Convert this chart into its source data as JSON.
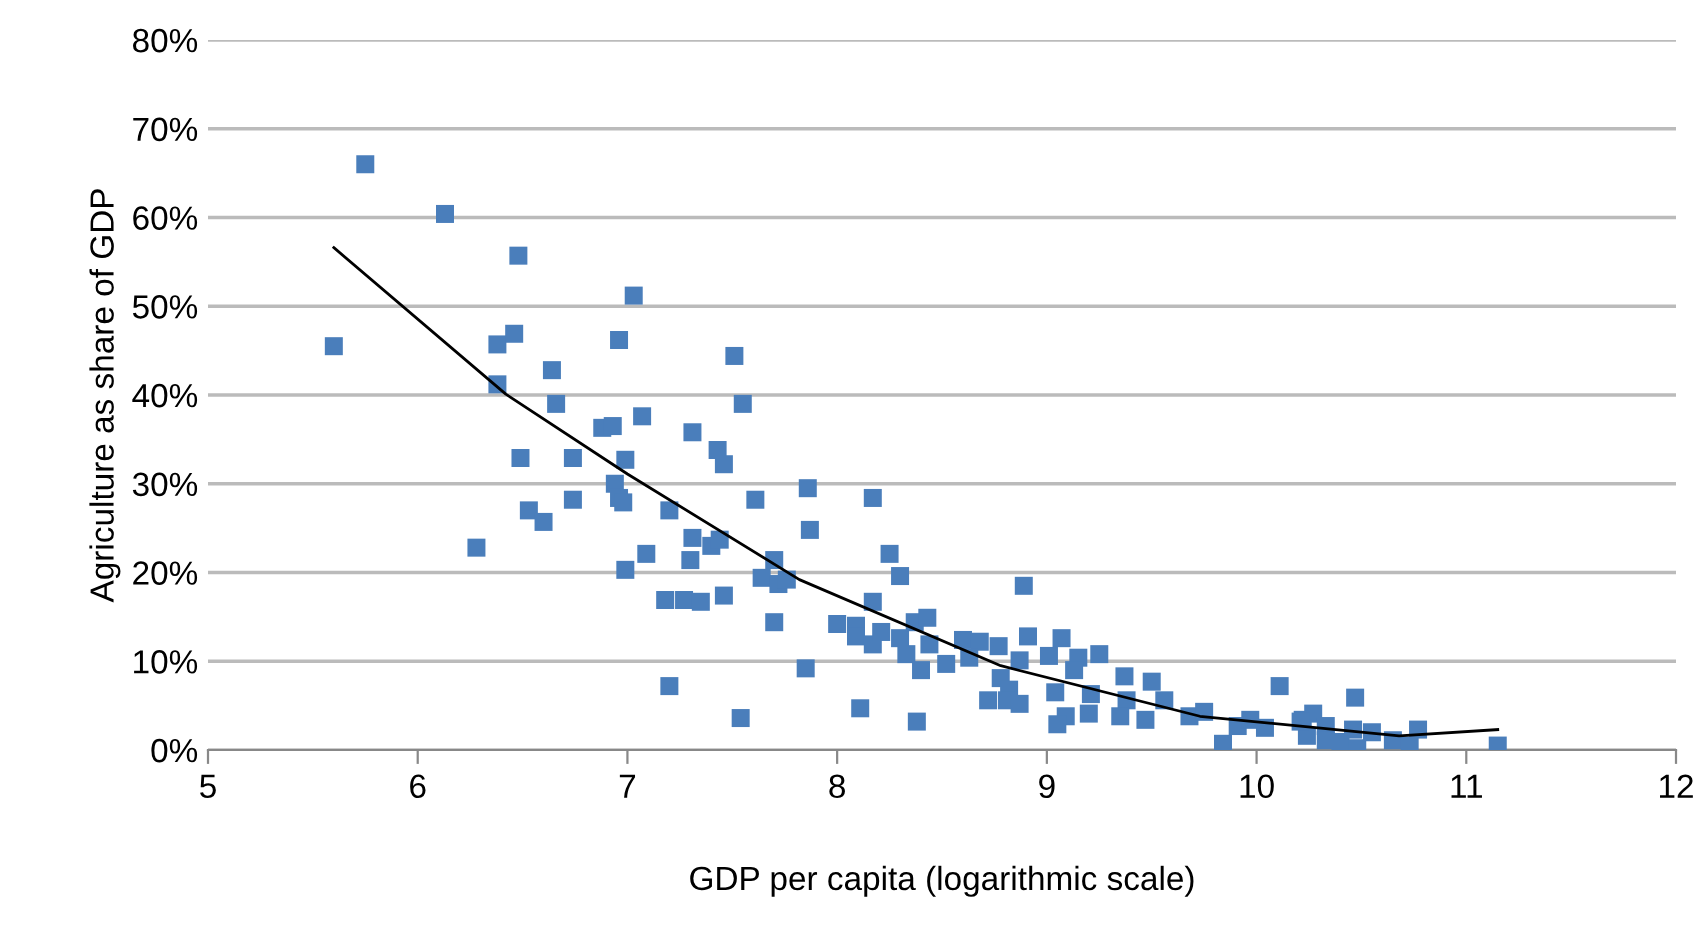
{
  "chart_data": {
    "type": "scatter",
    "xlabel": "GDP per capita (logarithmic scale)",
    "ylabel": "Agriculture as share of GDP",
    "marker": "square",
    "grid": "y",
    "legend": false,
    "xlim": [
      5,
      12
    ],
    "xticks": [
      5,
      6,
      7,
      8,
      9,
      10,
      11,
      12
    ],
    "ylim": [
      0,
      80
    ],
    "yticks": [
      {
        "value": 0,
        "label": "0%"
      },
      {
        "value": 10,
        "label": "10%"
      },
      {
        "value": 20,
        "label": "20%"
      },
      {
        "value": 30,
        "label": "30%"
      },
      {
        "value": 40,
        "label": "40%"
      },
      {
        "value": 50,
        "label": "50%"
      },
      {
        "value": 60,
        "label": "60%"
      },
      {
        "value": 70,
        "label": "70%"
      },
      {
        "value": 80,
        "label": "80%"
      }
    ],
    "series": [
      {
        "color": "#4a7ebb",
        "x": [
          5.75,
          6.13,
          6.48,
          7.03,
          5.6,
          6.38,
          6.46,
          6.96,
          6.64,
          7.51,
          6.38,
          6.66,
          7.55,
          6.88,
          6.93,
          7.07,
          7.31,
          7.43,
          7.46,
          6.49,
          6.74,
          6.99,
          6.94,
          6.96,
          6.98,
          6.74,
          7.2,
          7.61,
          7.86,
          7.87,
          6.53,
          6.6,
          6.28,
          7.09,
          6.99,
          7.31,
          7.4,
          7.44,
          7.3,
          7.7,
          7.64,
          7.72,
          7.76,
          7.18,
          7.27,
          7.35,
          7.46,
          7.7,
          7.85,
          7.2,
          7.54,
          8.17,
          8.25,
          8.3,
          8.17,
          8.0,
          8.09,
          8.09,
          8.17,
          8.21,
          8.3,
          8.33,
          8.37,
          8.43,
          8.44,
          8.4,
          8.52,
          8.6,
          8.68,
          8.63,
          8.77,
          8.78,
          8.82,
          8.87,
          8.72,
          8.81,
          8.87,
          8.89,
          8.91,
          9.07,
          9.01,
          9.15,
          9.25,
          9.13,
          9.04,
          9.21,
          9.37,
          9.5,
          9.56,
          9.38,
          9.47,
          9.35,
          9.09,
          9.05,
          9.2,
          8.11,
          8.38,
          9.68,
          9.75,
          9.84,
          9.91,
          9.97,
          10.04,
          10.11,
          10.22,
          10.27,
          10.24,
          10.47,
          10.21,
          10.33,
          10.33,
          10.4,
          10.46,
          10.48,
          10.55,
          10.65,
          10.73,
          10.77,
          11.15
        ],
        "values": [
          66.0,
          60.4,
          55.7,
          51.2,
          45.5,
          45.7,
          46.9,
          46.2,
          42.8,
          44.4,
          41.2,
          39.0,
          39.0,
          36.3,
          36.5,
          37.6,
          35.8,
          33.8,
          32.2,
          32.9,
          32.9,
          32.7,
          30.0,
          28.4,
          27.9,
          28.2,
          27.0,
          28.2,
          29.5,
          24.8,
          27.0,
          25.7,
          22.8,
          22.1,
          20.3,
          23.9,
          23.0,
          23.7,
          21.4,
          21.4,
          19.4,
          18.7,
          19.2,
          16.9,
          16.9,
          16.7,
          17.4,
          14.4,
          9.2,
          7.2,
          3.6,
          28.4,
          22.1,
          19.6,
          16.7,
          14.2,
          14.0,
          12.8,
          11.9,
          13.3,
          12.6,
          10.8,
          14.4,
          14.9,
          11.9,
          9.0,
          9.7,
          12.4,
          12.2,
          10.4,
          11.7,
          8.1,
          6.8,
          10.1,
          5.6,
          5.6,
          5.2,
          18.5,
          12.8,
          12.6,
          10.6,
          10.4,
          10.8,
          9.0,
          6.5,
          6.3,
          8.3,
          7.7,
          5.6,
          5.6,
          3.4,
          3.8,
          3.8,
          2.9,
          4.1,
          4.7,
          3.2,
          3.8,
          4.3,
          0.7,
          2.7,
          3.4,
          2.5,
          7.2,
          3.4,
          4.1,
          1.6,
          5.9,
          3.2,
          2.7,
          1.1,
          0.9,
          2.3,
          0.2,
          2.0,
          1.1,
          0.5,
          2.3,
          0.5
        ]
      },
      {
        "type": "line",
        "color": "#000000",
        "marker": "none",
        "x": [
          5.6,
          6.42,
          7.0,
          7.82,
          8.78,
          9.73,
          10.68,
          11.15
        ],
        "values": [
          56.6,
          40.1,
          31.1,
          19.2,
          9.5,
          3.8,
          1.6,
          2.3
        ]
      }
    ]
  }
}
